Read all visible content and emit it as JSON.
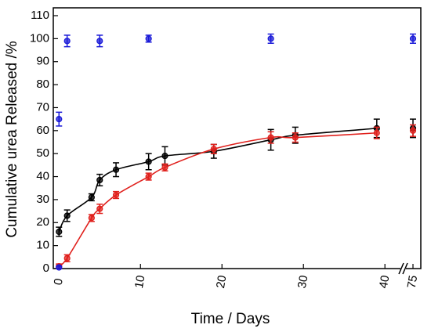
{
  "chart_data": {
    "type": "scatter",
    "xlabel": "Time / Days",
    "ylabel": "Cumulative urea Released  /%",
    "xlim": [
      -0.7,
      76
    ],
    "xbreak": [
      42,
      74
    ],
    "xticks": [
      0,
      10,
      20,
      30,
      40,
      75
    ],
    "ylim": [
      0,
      110
    ],
    "yticks": [
      0,
      10,
      20,
      30,
      40,
      50,
      60,
      70,
      80,
      90,
      100,
      110
    ],
    "series": [
      {
        "color": "#000000",
        "fit": true,
        "x": [
          0,
          1,
          4,
          5,
          7,
          11,
          13,
          19,
          26,
          29,
          39,
          75
        ],
        "values": [
          16,
          23,
          31,
          38.5,
          43,
          46.5,
          49,
          51,
          56,
          58,
          61,
          61
        ],
        "errors": [
          2,
          2.5,
          1.5,
          2.5,
          3,
          3.5,
          4,
          3,
          4.5,
          3.5,
          4,
          4
        ]
      },
      {
        "color": "#e0201c",
        "fit": true,
        "x": [
          0,
          1,
          4,
          5,
          7,
          11,
          13,
          19,
          26,
          29,
          39,
          75
        ],
        "values": [
          1,
          4.5,
          22,
          26,
          32,
          40,
          44,
          52,
          57,
          57,
          59,
          60
        ],
        "errors": [
          1,
          1.5,
          1.5,
          2,
          1.5,
          1.5,
          1.5,
          2,
          2.5,
          2,
          2.5,
          2.5
        ]
      },
      {
        "color": "#1a1ad8",
        "fit": false,
        "x": [
          0,
          0,
          1,
          5,
          11,
          26,
          75
        ],
        "values": [
          0.5,
          65,
          99,
          99,
          100,
          100,
          100
        ],
        "errors": [
          0.5,
          3,
          2.5,
          2.5,
          1.5,
          2,
          2
        ]
      }
    ]
  }
}
